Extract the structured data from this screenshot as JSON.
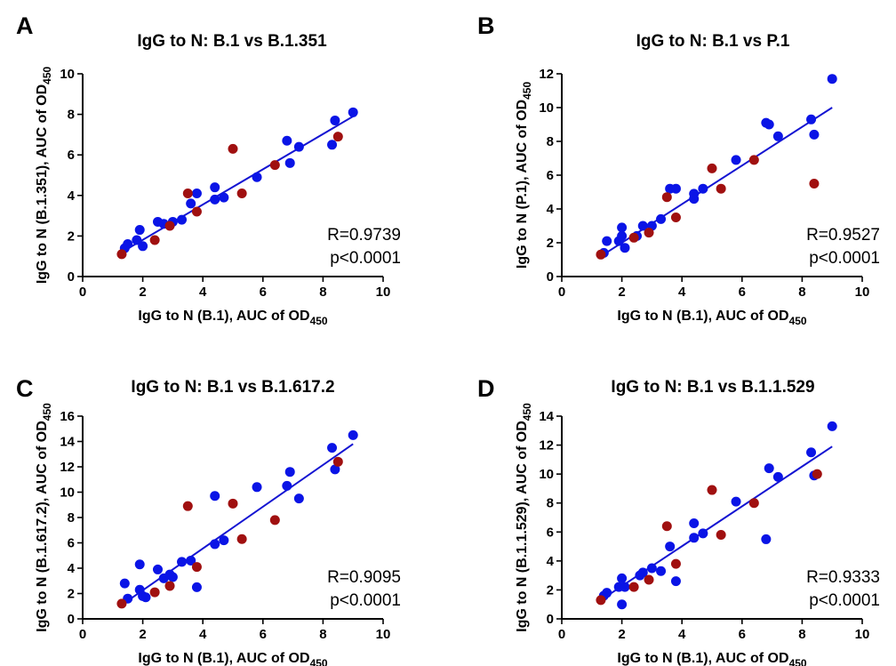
{
  "colors": {
    "series_1": "#0a14e6",
    "series_2": "#a01010",
    "fit": "#1414d2"
  },
  "chart_data": [
    {
      "type": "scatter",
      "panel_label": "A",
      "title": "IgG to N: B.1 vs B.1.351",
      "xlabel_main": "IgG to N (B.1), AUC of OD",
      "xlabel_sub": "450",
      "ylabel_main": "IgG to N (B.1.351), AUC of OD",
      "ylabel_sub": "450",
      "xlim": [
        0,
        10
      ],
      "ylim": [
        0,
        10
      ],
      "xticks": [
        0,
        2,
        4,
        6,
        8,
        10
      ],
      "yticks": [
        0,
        2,
        4,
        6,
        8,
        10
      ],
      "stat_r": "R=0.9739",
      "stat_p": "p<0.0001",
      "fit_line": {
        "x": [
          1.3,
          9.0
        ],
        "y": [
          1.2,
          7.9
        ]
      },
      "series": [
        {
          "color": "series_1",
          "points": [
            [
              1.4,
              1.4
            ],
            [
              1.5,
              1.6
            ],
            [
              1.8,
              1.8
            ],
            [
              1.9,
              2.3
            ],
            [
              2.0,
              1.5
            ],
            [
              2.5,
              2.7
            ],
            [
              2.7,
              2.6
            ],
            [
              3.0,
              2.7
            ],
            [
              3.3,
              2.8
            ],
            [
              3.6,
              3.6
            ],
            [
              3.8,
              4.1
            ],
            [
              4.4,
              4.4
            ],
            [
              4.4,
              3.8
            ],
            [
              4.7,
              3.9
            ],
            [
              5.8,
              4.9
            ],
            [
              6.8,
              6.7
            ],
            [
              6.9,
              5.6
            ],
            [
              7.2,
              6.4
            ],
            [
              8.3,
              6.5
            ],
            [
              8.4,
              7.7
            ],
            [
              9.0,
              8.1
            ]
          ]
        },
        {
          "color": "series_2",
          "points": [
            [
              1.3,
              1.1
            ],
            [
              2.4,
              1.8
            ],
            [
              2.9,
              2.5
            ],
            [
              3.5,
              4.1
            ],
            [
              3.8,
              3.2
            ],
            [
              5.0,
              6.3
            ],
            [
              5.3,
              4.1
            ],
            [
              6.4,
              5.5
            ],
            [
              8.5,
              6.9
            ]
          ]
        }
      ]
    },
    {
      "type": "scatter",
      "panel_label": "B",
      "title": "IgG to N: B.1 vs P.1",
      "xlabel_main": "IgG to N (B.1), AUC of OD",
      "xlabel_sub": "450",
      "ylabel_main": "IgG to N (P.1), AUC of OD",
      "ylabel_sub": "450",
      "xlim": [
        0,
        10
      ],
      "ylim": [
        0,
        12
      ],
      "xticks": [
        0,
        2,
        4,
        6,
        8,
        10
      ],
      "yticks": [
        0,
        2,
        4,
        6,
        8,
        10,
        12
      ],
      "stat_r": "R=0.9527",
      "stat_p": "p<0.0001",
      "fit_line": {
        "x": [
          1.3,
          9.0
        ],
        "y": [
          1.2,
          10.0
        ]
      },
      "series": [
        {
          "color": "series_1",
          "points": [
            [
              1.4,
              1.4
            ],
            [
              1.5,
              2.1
            ],
            [
              1.9,
              2.1
            ],
            [
              2.0,
              2.4
            ],
            [
              2.0,
              2.9
            ],
            [
              2.1,
              1.7
            ],
            [
              2.5,
              2.4
            ],
            [
              2.7,
              3.0
            ],
            [
              3.0,
              3.0
            ],
            [
              3.3,
              3.4
            ],
            [
              3.6,
              5.2
            ],
            [
              3.8,
              5.2
            ],
            [
              4.4,
              4.6
            ],
            [
              4.4,
              4.9
            ],
            [
              4.7,
              5.2
            ],
            [
              5.8,
              6.9
            ],
            [
              6.8,
              9.1
            ],
            [
              6.9,
              9.0
            ],
            [
              7.2,
              8.3
            ],
            [
              8.3,
              9.3
            ],
            [
              8.4,
              8.4
            ],
            [
              9.0,
              11.7
            ]
          ]
        },
        {
          "color": "series_2",
          "points": [
            [
              1.3,
              1.3
            ],
            [
              2.4,
              2.3
            ],
            [
              2.9,
              2.6
            ],
            [
              3.5,
              4.7
            ],
            [
              3.8,
              3.5
            ],
            [
              5.0,
              6.4
            ],
            [
              5.3,
              5.2
            ],
            [
              6.4,
              6.9
            ],
            [
              8.4,
              5.5
            ]
          ]
        }
      ]
    },
    {
      "type": "scatter",
      "panel_label": "C",
      "title": "IgG to N: B.1 vs B.1.617.2",
      "xlabel_main": "IgG to N (B.1), AUC of OD",
      "xlabel_sub": "450",
      "ylabel_main": "IgG to N (B.1.617.2), AUC of OD",
      "ylabel_sub": "450",
      "xlim": [
        0,
        10
      ],
      "ylim": [
        0,
        16
      ],
      "xticks": [
        0,
        2,
        4,
        6,
        8,
        10
      ],
      "yticks": [
        0,
        2,
        4,
        6,
        8,
        10,
        12,
        14,
        16
      ],
      "stat_r": "R=0.9095",
      "stat_p": "p<0.0001",
      "fit_line": {
        "x": [
          1.3,
          9.0
        ],
        "y": [
          1.1,
          13.8
        ]
      },
      "series": [
        {
          "color": "series_1",
          "points": [
            [
              1.4,
              2.8
            ],
            [
              1.5,
              1.6
            ],
            [
              1.9,
              2.3
            ],
            [
              1.9,
              4.3
            ],
            [
              2.0,
              1.8
            ],
            [
              2.1,
              1.7
            ],
            [
              2.5,
              3.9
            ],
            [
              2.7,
              3.2
            ],
            [
              2.9,
              3.5
            ],
            [
              3.0,
              3.3
            ],
            [
              3.3,
              4.5
            ],
            [
              3.6,
              4.6
            ],
            [
              3.8,
              2.5
            ],
            [
              4.4,
              9.7
            ],
            [
              4.4,
              5.9
            ],
            [
              4.7,
              6.2
            ],
            [
              5.8,
              10.4
            ],
            [
              6.8,
              10.5
            ],
            [
              6.9,
              11.6
            ],
            [
              7.2,
              9.5
            ],
            [
              8.3,
              13.5
            ],
            [
              8.4,
              11.8
            ],
            [
              9.0,
              14.5
            ]
          ]
        },
        {
          "color": "series_2",
          "points": [
            [
              1.3,
              1.2
            ],
            [
              2.4,
              2.1
            ],
            [
              2.9,
              2.6
            ],
            [
              3.5,
              8.9
            ],
            [
              3.8,
              4.1
            ],
            [
              5.0,
              9.1
            ],
            [
              5.3,
              6.3
            ],
            [
              6.4,
              7.8
            ],
            [
              8.5,
              12.4
            ]
          ]
        }
      ]
    },
    {
      "type": "scatter",
      "panel_label": "D",
      "title": "IgG to N: B.1 vs B.1.1.529",
      "xlabel_main": "IgG to N (B.1), AUC of OD",
      "xlabel_sub": "450",
      "ylabel_main": "IgG to N (B.1.1.529), AUC of OD",
      "ylabel_sub": "450",
      "xlim": [
        0,
        10
      ],
      "ylim": [
        0,
        14
      ],
      "xticks": [
        0,
        2,
        4,
        6,
        8,
        10
      ],
      "yticks": [
        0,
        2,
        4,
        6,
        8,
        10,
        12,
        14
      ],
      "stat_r": "R=0.9333",
      "stat_p": "p<0.0001",
      "fit_line": {
        "x": [
          1.3,
          9.0
        ],
        "y": [
          1.3,
          11.9
        ]
      },
      "series": [
        {
          "color": "series_1",
          "points": [
            [
              1.4,
              1.6
            ],
            [
              1.5,
              1.8
            ],
            [
              1.9,
              2.2
            ],
            [
              2.0,
              2.8
            ],
            [
              2.0,
              1.0
            ],
            [
              2.1,
              2.2
            ],
            [
              2.6,
              3.0
            ],
            [
              2.7,
              3.2
            ],
            [
              3.0,
              3.5
            ],
            [
              3.3,
              3.3
            ],
            [
              3.6,
              5.0
            ],
            [
              3.8,
              2.6
            ],
            [
              4.4,
              6.6
            ],
            [
              4.4,
              5.6
            ],
            [
              4.7,
              5.9
            ],
            [
              5.8,
              8.1
            ],
            [
              6.8,
              5.5
            ],
            [
              6.9,
              10.4
            ],
            [
              7.2,
              9.8
            ],
            [
              8.3,
              11.5
            ],
            [
              8.4,
              9.9
            ],
            [
              9.0,
              13.3
            ]
          ]
        },
        {
          "color": "series_2",
          "points": [
            [
              1.3,
              1.3
            ],
            [
              2.4,
              2.2
            ],
            [
              2.9,
              2.7
            ],
            [
              3.5,
              6.4
            ],
            [
              3.8,
              3.8
            ],
            [
              5.0,
              8.9
            ],
            [
              5.3,
              5.8
            ],
            [
              6.4,
              8.0
            ],
            [
              8.5,
              10.0
            ]
          ]
        }
      ]
    }
  ]
}
